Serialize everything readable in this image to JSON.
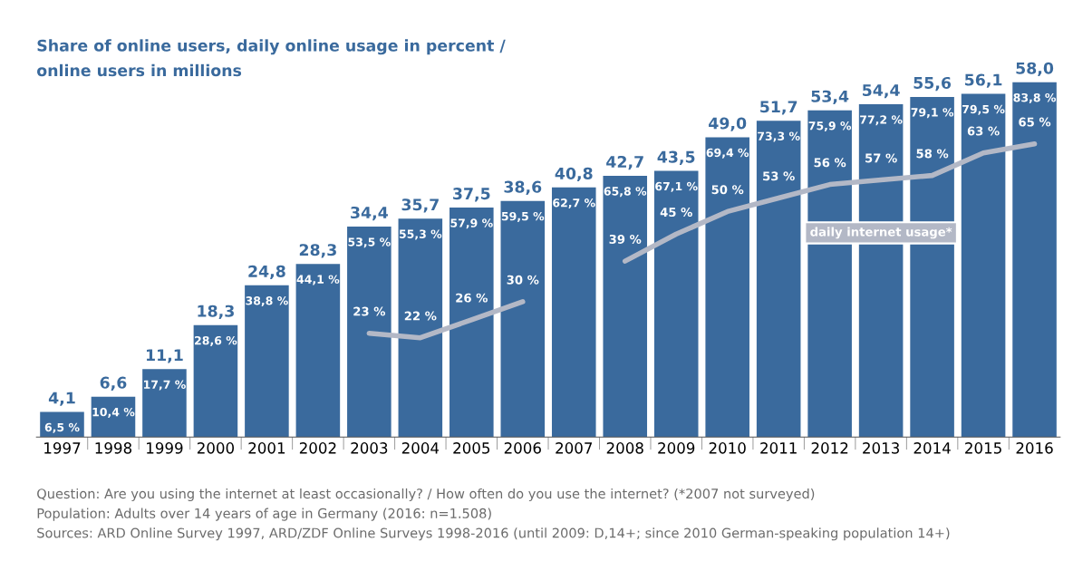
{
  "chart_data": {
    "type": "bar",
    "title": "Share of online users, daily online usage in percent /\nonline users in millions",
    "categories": [
      "1997",
      "1998",
      "1999",
      "2000",
      "2001",
      "2002",
      "2003",
      "2004",
      "2005",
      "2006",
      "2007",
      "2008",
      "2009",
      "2010",
      "2011",
      "2012",
      "2013",
      "2014",
      "2015",
      "2016"
    ],
    "series": [
      {
        "color": "#3a6a9d",
        "values": [
          4.1,
          6.6,
          11.1,
          18.3,
          24.8,
          28.3,
          34.4,
          35.7,
          37.5,
          38.6,
          40.8,
          42.7,
          43.5,
          49.0,
          51.7,
          53.4,
          54.4,
          55.6,
          56.1,
          58.0
        ],
        "value_labels": [
          "4,1",
          "6,6",
          "11,1",
          "18,3",
          "24,8",
          "28,3",
          "34,4",
          "35,7",
          "37,5",
          "38,6",
          "40,8",
          "42,7",
          "43,5",
          "49,0",
          "51,7",
          "53,4",
          "54,4",
          "55,6",
          "56,1",
          "58,0"
        ]
      },
      {
        "type": "line",
        "axis": "y2",
        "name": "daily internet usage*",
        "color": "#b3b8c6",
        "values": [
          null,
          null,
          null,
          null,
          null,
          null,
          23,
          22,
          26,
          30,
          null,
          39,
          45,
          50,
          53,
          56,
          57,
          58,
          63,
          65
        ],
        "value_labels": [
          null,
          null,
          null,
          null,
          null,
          null,
          "23 %",
          "22 %",
          "26 %",
          "30 %",
          null,
          "39 %",
          "45 %",
          "50 %",
          "53 %",
          "56 %",
          "57 %",
          "58 %",
          "63 %",
          "65 %"
        ]
      }
    ],
    "tick_labels": "x",
    "grid": false,
    "legend": false,
    "annotations": [
      {
        "text": "6,5 %",
        "x": "1997",
        "y": 4.1
      },
      {
        "text": "10,4 %",
        "x": "1998",
        "y": 6.6
      },
      {
        "text": "17,7 %",
        "x": "1999",
        "y": 11.1
      },
      {
        "text": "28,6 %",
        "x": "2000",
        "y": 18.3
      },
      {
        "text": "38,8 %",
        "x": "2001",
        "y": 24.8
      },
      {
        "text": "44,1 %",
        "x": "2002",
        "y": 28.3
      },
      {
        "text": "53,5 %",
        "x": "2003",
        "y": 34.4
      },
      {
        "text": "55,3 %",
        "x": "2004",
        "y": 35.7
      },
      {
        "text": "57,9 %",
        "x": "2005",
        "y": 37.5
      },
      {
        "text": "59,5 %",
        "x": "2006",
        "y": 38.6
      },
      {
        "text": "62,7 %",
        "x": "2007",
        "y": 40.8
      },
      {
        "text": "65,8 %",
        "x": "2008",
        "y": 42.7
      },
      {
        "text": "67,1 %",
        "x": "2009",
        "y": 43.5
      },
      {
        "text": "69,4 %",
        "x": "2010",
        "y": 49.0
      },
      {
        "text": "73,3 %",
        "x": "2011",
        "y": 51.7
      },
      {
        "text": "75,9 %",
        "x": "2012",
        "y": 53.4
      },
      {
        "text": "77,2 %",
        "x": "2013",
        "y": 54.4
      },
      {
        "text": "79,1 %",
        "x": "2014",
        "y": 55.6
      },
      {
        "text": "79,5 %",
        "x": "2015",
        "y": 56.1
      },
      {
        "text": "83,8 %",
        "x": "2016",
        "y": 58.0
      },
      "Question: Are you using the internet at least occasionally? / How often do you use the internet? (*2007 not surveyed)",
      "Population: Adults over 14 years of age in Germany (2016: n=1.508)",
      "Sources: ARD Online Survey 1997, ARD/ZDF Online Surveys 1998-2016 (until 2009: D,14+; since 2010 German-speaking population 14+)"
    ]
  }
}
